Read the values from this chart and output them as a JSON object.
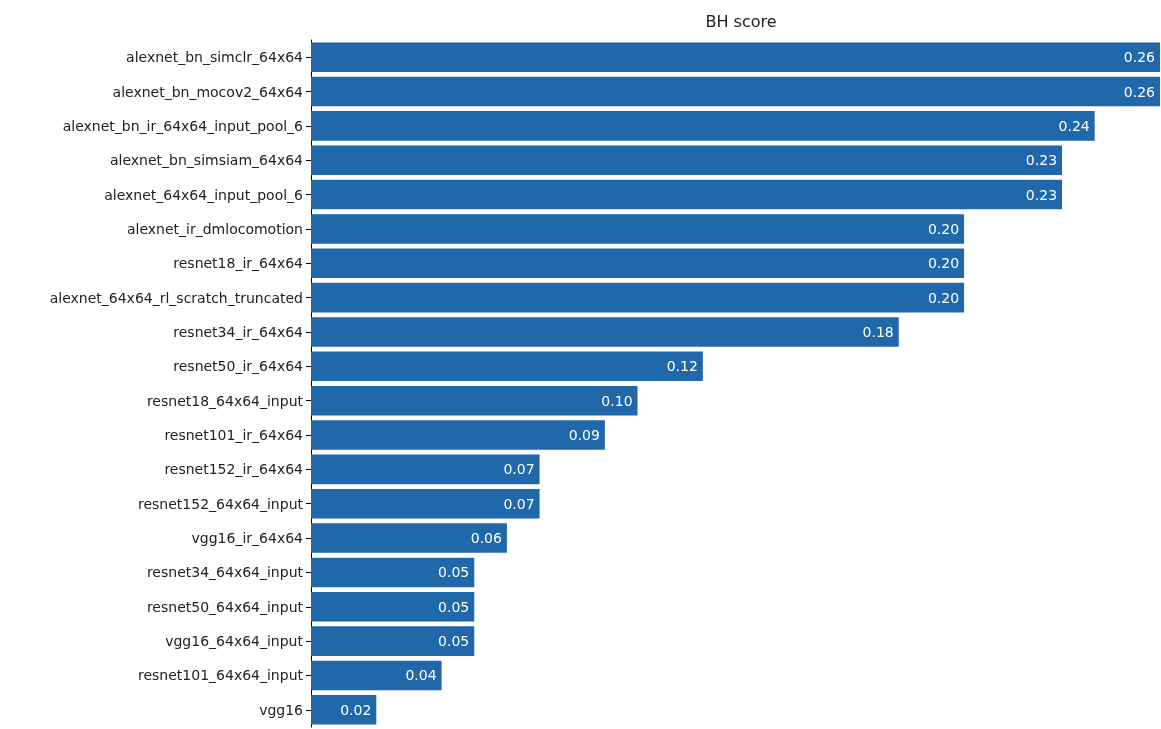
{
  "chart_data": {
    "type": "bar",
    "orientation": "horizontal",
    "title": "BH score",
    "categories": [
      "alexnet_bn_simclr_64x64",
      "alexnet_bn_mocov2_64x64",
      "alexnet_bn_ir_64x64_input_pool_6",
      "alexnet_bn_simsiam_64x64",
      "alexnet_64x64_input_pool_6",
      "alexnet_ir_dmlocomotion",
      "resnet18_ir_64x64",
      "alexnet_64x64_rl_scratch_truncated",
      "resnet34_ir_64x64",
      "resnet50_ir_64x64",
      "resnet18_64x64_input",
      "resnet101_ir_64x64",
      "resnet152_ir_64x64",
      "resnet152_64x64_input",
      "vgg16_ir_64x64",
      "resnet34_64x64_input",
      "resnet50_64x64_input",
      "vgg16_64x64_input",
      "resnet101_64x64_input",
      "vgg16"
    ],
    "values": [
      0.26,
      0.26,
      0.24,
      0.23,
      0.23,
      0.2,
      0.2,
      0.2,
      0.18,
      0.12,
      0.1,
      0.09,
      0.07,
      0.07,
      0.06,
      0.05,
      0.05,
      0.05,
      0.04,
      0.02
    ],
    "value_labels": [
      "0.26",
      "0.26",
      "0.24",
      "0.23",
      "0.23",
      "0.20",
      "0.20",
      "0.20",
      "0.18",
      "0.12",
      "0.10",
      "0.09",
      "0.07",
      "0.07",
      "0.06",
      "0.05",
      "0.05",
      "0.05",
      "0.04",
      "0.02"
    ],
    "color": "#2068aa"
  }
}
